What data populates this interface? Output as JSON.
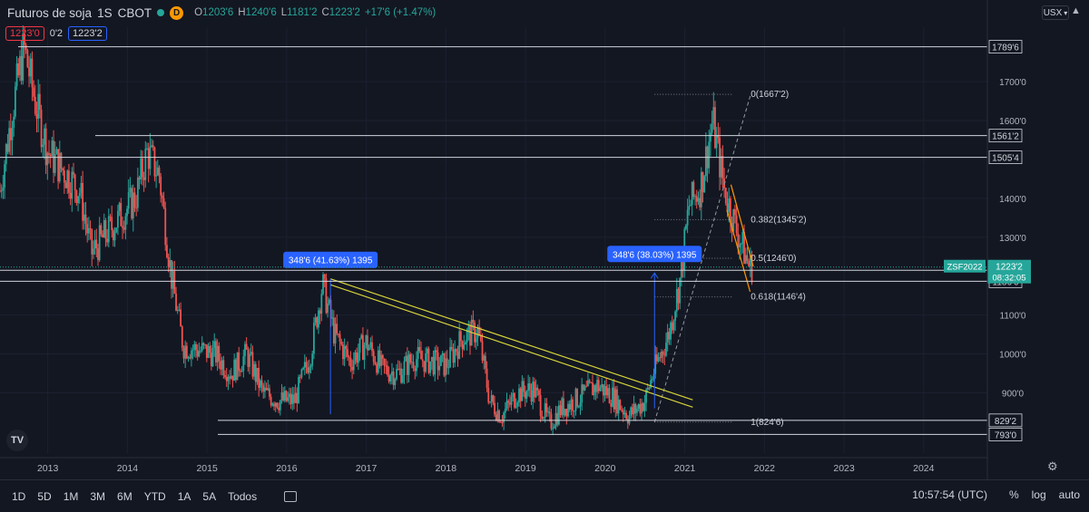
{
  "header": {
    "symbol": "Futuros de soja",
    "interval": "1S",
    "exchange": "CBOT",
    "d_badge": "D",
    "open_label": "O",
    "open": "1203'6",
    "high_label": "H",
    "high": "1240'6",
    "low_label": "L",
    "low": "1181'2",
    "close_label": "C",
    "close": "1223'2",
    "change": "+17'6 (+1.47%)",
    "bid": "1223'0",
    "spread": "0'2",
    "ask": "1223'2"
  },
  "currency": "USX",
  "bottom_bar": {
    "timeframes": [
      "1D",
      "5D",
      "1M",
      "3M",
      "6M",
      "YTD",
      "1A",
      "5A",
      "Todos"
    ],
    "time": "10:57:54 (UTC)",
    "percent_label": "%",
    "log_label": "log",
    "auto_label": "auto"
  },
  "colors": {
    "up": "#26a69a",
    "down": "#ef5350",
    "accent": "#2962ff",
    "fib_orange": "#ff9800",
    "channel_yellow": "#d6d33a"
  },
  "chart_data": {
    "type": "candlestick",
    "x_range": [
      2012.4,
      2024.8
    ],
    "y_range": [
      745,
      1840
    ],
    "x_ticks": [
      2013,
      2014,
      2015,
      2016,
      2017,
      2018,
      2019,
      2020,
      2021,
      2022,
      2023,
      2024
    ],
    "x_tick_labels": [
      "2013",
      "2014",
      "2015",
      "2016",
      "2017",
      "2018",
      "2019",
      "2020",
      "2021",
      "2022",
      "2023",
      "2024"
    ],
    "y_ticks": [
      900,
      1000,
      1100,
      1300,
      1400,
      1600,
      1700
    ],
    "y_tick_labels": [
      "900'0",
      "1000'0",
      "1100'0",
      "1300'0",
      "1400'0",
      "1600'0",
      "1700'0"
    ],
    "price_path": [
      [
        2012.4,
        1420
      ],
      [
        2012.55,
        1620
      ],
      [
        2012.7,
        1789
      ],
      [
        2012.85,
        1640
      ],
      [
        2013.0,
        1520
      ],
      [
        2013.2,
        1470
      ],
      [
        2013.4,
        1420
      ],
      [
        2013.55,
        1260
      ],
      [
        2013.7,
        1300
      ],
      [
        2013.9,
        1350
      ],
      [
        2014.1,
        1400
      ],
      [
        2014.25,
        1520
      ],
      [
        2014.4,
        1460
      ],
      [
        2014.55,
        1200
      ],
      [
        2014.7,
        1020
      ],
      [
        2014.9,
        1010
      ],
      [
        2015.1,
        1000
      ],
      [
        2015.3,
        950
      ],
      [
        2015.5,
        1000
      ],
      [
        2015.7,
        900
      ],
      [
        2015.9,
        880
      ],
      [
        2016.1,
        880
      ],
      [
        2016.3,
        1000
      ],
      [
        2016.45,
        1180
      ],
      [
        2016.6,
        1050
      ],
      [
        2016.8,
        980
      ],
      [
        2017.0,
        1030
      ],
      [
        2017.2,
        960
      ],
      [
        2017.4,
        950
      ],
      [
        2017.6,
        990
      ],
      [
        2017.8,
        980
      ],
      [
        2018.0,
        970
      ],
      [
        2018.2,
        1040
      ],
      [
        2018.4,
        1060
      ],
      [
        2018.55,
        880
      ],
      [
        2018.7,
        840
      ],
      [
        2018.9,
        900
      ],
      [
        2019.1,
        910
      ],
      [
        2019.3,
        820
      ],
      [
        2019.45,
        860
      ],
      [
        2019.7,
        890
      ],
      [
        2019.9,
        920
      ],
      [
        2020.1,
        890
      ],
      [
        2020.3,
        840
      ],
      [
        2020.5,
        880
      ],
      [
        2020.6,
        950
      ],
      [
        2020.8,
        1050
      ],
      [
        2020.95,
        1200
      ],
      [
        2021.05,
        1380
      ],
      [
        2021.2,
        1430
      ],
      [
        2021.35,
        1600
      ],
      [
        2021.5,
        1420
      ],
      [
        2021.65,
        1320
      ],
      [
        2021.8,
        1230
      ],
      [
        2021.85,
        1223
      ]
    ],
    "horizontal_levels": [
      {
        "label": "1789'6",
        "value": 1789.75
      },
      {
        "label": "1561'2",
        "value": 1561.25
      },
      {
        "label": "1505'4",
        "value": 1505.5
      },
      {
        "label": "1215'0",
        "value": 1215
      },
      {
        "label": "1186'6",
        "value": 1186.75
      },
      {
        "label": "829'2",
        "value": 829.25
      },
      {
        "label": "793'0",
        "value": 793
      }
    ],
    "fib_levels": [
      {
        "label": "0(1667'2)",
        "value": 1667.25
      },
      {
        "label": "0.382(1345'2)",
        "value": 1345.25
      },
      {
        "label": "0.5(1246'0)",
        "value": 1246
      },
      {
        "label": "0.618(1146'4)",
        "value": 1146.5
      },
      {
        "label": "1(824'6)",
        "value": 824.75
      }
    ],
    "measurements": [
      {
        "label": "348'6 (41.63%) 1395",
        "date": 2016.55,
        "from": 845,
        "to": 1193
      },
      {
        "label": "348'6 (38.03%) 1395",
        "date": 2020.62,
        "from": 860,
        "to": 1208
      }
    ],
    "last_price": {
      "symbol": "ZSF2022",
      "price": "1223'2",
      "countdown": "08:32:05",
      "value": 1223.25
    }
  }
}
